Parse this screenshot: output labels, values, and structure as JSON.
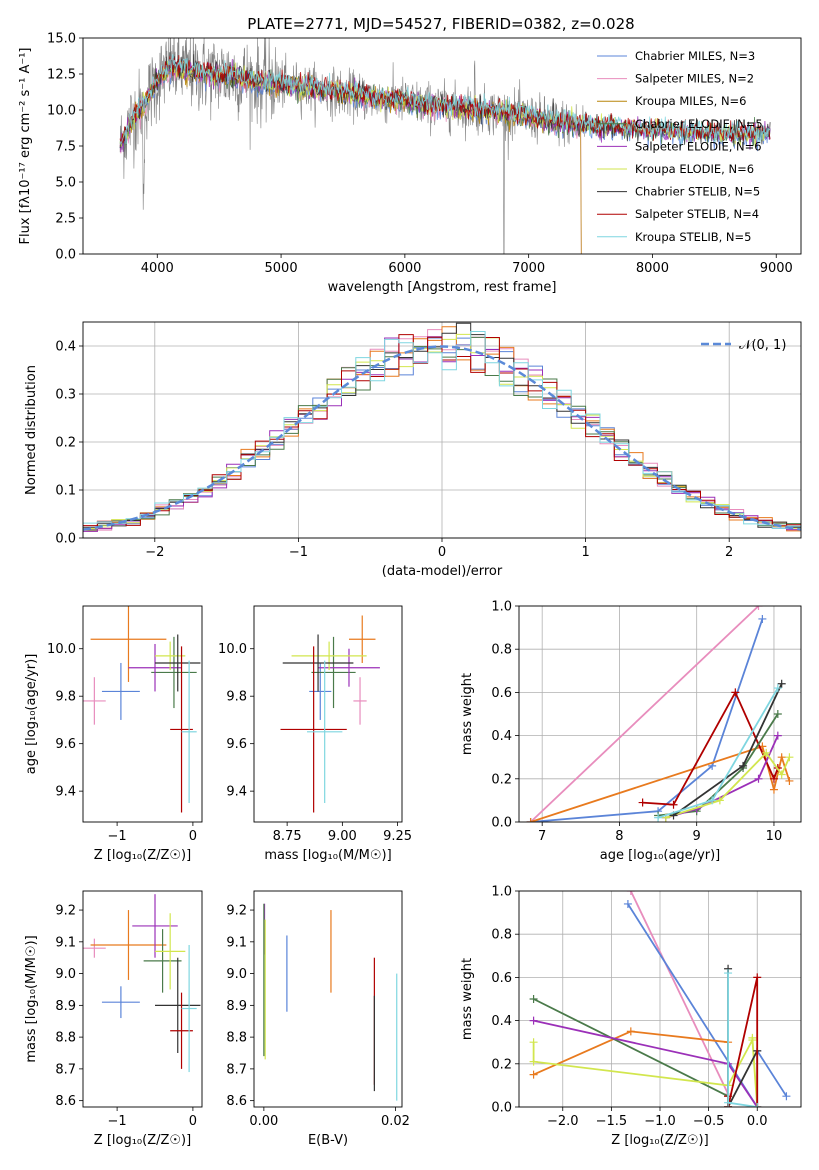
{
  "page_title": "PLATE=2771, MJD=54527, FIBERID=0382, z=0.028",
  "colors": {
    "chabrier_miles": "#5b84d8",
    "salpeter_miles": "#e88dbd",
    "kroupa_miles": "#b8860b",
    "chabrier_elodie": "#4a7a4a",
    "salpeter_elodie": "#9b30b8",
    "kroupa_elodie": "#d2e64e",
    "chabrier_stelib": "#333333",
    "salpeter_stelib": "#b00000",
    "kroupa_stelib": "#7fd6e0",
    "data": "#808080",
    "gaussian": "#5b8ad8",
    "orange_model": "#e87a1e"
  },
  "chart_data": [
    {
      "id": "spectrum",
      "type": "line",
      "title": "PLATE=2771, MJD=54527, FIBERID=0382, z=0.028",
      "xlabel": "wavelength [Angstrom, rest frame]",
      "ylabel": "Flux [fλ10⁻¹⁷ erg cm⁻² s⁻¹ A⁻¹]",
      "xlim": [
        3400,
        9200
      ],
      "ylim": [
        0,
        15
      ],
      "xticks": [
        4000,
        5000,
        6000,
        7000,
        8000,
        9000
      ],
      "yticks": [
        0.0,
        2.5,
        5.0,
        7.5,
        10.0,
        12.5,
        15.0
      ],
      "ytick_labels": [
        "0.0",
        "2.5",
        "5.0",
        "7.5",
        "10.0",
        "12.5",
        "15.0"
      ],
      "legend": [
        "Chabrier MILES, N_SSP=3",
        "Salpeter MILES, N_SSP=2",
        "Kroupa MILES, N_SSP=6",
        "Chabrier ELODIE, N_SSP=5",
        "Salpeter ELODIE, N_SSP=6",
        "Kroupa ELODIE, N_SSP=6",
        "Chabrier STELIB, N_SSP=5",
        "Salpeter STELIB, N_SSP=4",
        "Kroupa STELIB, N_SSP=5"
      ],
      "legend_placement": "upper-right",
      "continuum": [
        [
          3700,
          7.5
        ],
        [
          3800,
          9.5
        ],
        [
          3900,
          10.5
        ],
        [
          4000,
          12.0
        ],
        [
          4100,
          13.0
        ],
        [
          4200,
          12.8
        ],
        [
          4400,
          12.5
        ],
        [
          4600,
          12.4
        ],
        [
          4800,
          12.0
        ],
        [
          5000,
          11.8
        ],
        [
          5200,
          11.6
        ],
        [
          5400,
          11.3
        ],
        [
          5600,
          11.0
        ],
        [
          5800,
          10.8
        ],
        [
          6000,
          10.6
        ],
        [
          6200,
          10.3
        ],
        [
          6400,
          10.2
        ],
        [
          6600,
          10.0
        ],
        [
          6800,
          9.8
        ],
        [
          7000,
          9.5
        ],
        [
          7200,
          9.2
        ],
        [
          7400,
          9.0
        ],
        [
          7600,
          8.8
        ],
        [
          7800,
          8.7
        ],
        [
          8000,
          8.6
        ],
        [
          8200,
          8.5
        ],
        [
          8400,
          8.4
        ],
        [
          8600,
          8.3
        ],
        [
          8800,
          8.3
        ],
        [
          8950,
          8.4
        ]
      ],
      "data_range": [
        3700,
        7450
      ],
      "model_range": [
        3700,
        8950
      ]
    },
    {
      "id": "residuals",
      "type": "histogram",
      "xlabel": "(data-model)/error",
      "ylabel": "Normed distribution",
      "xlim": [
        -2.5,
        2.5
      ],
      "ylim": [
        0,
        0.45
      ],
      "xticks": [
        -2,
        -1,
        0,
        1,
        2
      ],
      "yticks": [
        0.0,
        0.1,
        0.2,
        0.3,
        0.4
      ],
      "ytick_labels": [
        "0.0",
        "0.1",
        "0.2",
        "0.3",
        "0.4"
      ],
      "legend": [
        "𝒩(0, 1)"
      ],
      "legend_placement": "upper-right",
      "bins": 50,
      "grid": true
    },
    {
      "id": "age_vs_Z",
      "type": "scatter",
      "xlabel": "Z [log₁₀(Z/Z☉)]",
      "ylabel": "age  [log₁₀(age/yr)]",
      "xlim": [
        -1.45,
        0.12
      ],
      "ylim": [
        9.27,
        10.18
      ],
      "xticks": [
        -1,
        0
      ],
      "yticks": [
        9.4,
        9.6,
        9.8,
        10.0
      ],
      "ytick_labels": [
        "9.4",
        "9.6",
        "9.8",
        "10.0"
      ],
      "points": [
        {
          "model": "chabrier_miles",
          "x": -0.95,
          "y": 9.82,
          "xerr": 0.25,
          "yerr": 0.12
        },
        {
          "model": "salpeter_miles",
          "x": -1.3,
          "y": 9.78,
          "xerr": 0.15,
          "yerr": 0.1
        },
        {
          "model": "orange_model",
          "x": -0.85,
          "y": 10.04,
          "xerr": 0.5,
          "yerr": 0.18
        },
        {
          "model": "chabrier_elodie",
          "x": -0.25,
          "y": 9.9,
          "xerr": 0.3,
          "yerr": 0.15
        },
        {
          "model": "salpeter_elodie",
          "x": -0.5,
          "y": 9.92,
          "xerr": 0.35,
          "yerr": 0.1
        },
        {
          "model": "kroupa_elodie",
          "x": -0.3,
          "y": 9.97,
          "xerr": 0.2,
          "yerr": 0.06
        },
        {
          "model": "chabrier_stelib",
          "x": -0.2,
          "y": 9.94,
          "xerr": 0.3,
          "yerr": 0.12
        },
        {
          "model": "salpeter_stelib",
          "x": -0.15,
          "y": 9.66,
          "xerr": 0.15,
          "yerr": 0.35
        },
        {
          "model": "kroupa_stelib",
          "x": -0.05,
          "y": 9.65,
          "xerr": 0.1,
          "yerr": 0.3
        }
      ]
    },
    {
      "id": "age_vs_mass",
      "type": "scatter",
      "xlabel": "mass [log₁₀(M/M☉)]",
      "ylabel": "",
      "xlim": [
        8.6,
        9.27
      ],
      "ylim": [
        9.27,
        10.18
      ],
      "xticks": [
        8.75,
        9.0,
        9.25
      ],
      "xtick_labels": [
        "8.75",
        "9.00",
        "9.25"
      ],
      "yticks": [
        9.4,
        9.6,
        9.8,
        10.0
      ],
      "ytick_labels": [
        "9.4",
        "9.6",
        "9.8",
        "10.0"
      ],
      "points": [
        {
          "model": "chabrier_miles",
          "x": 8.9,
          "y": 9.82,
          "xerr": 0.05,
          "yerr": 0.12
        },
        {
          "model": "salpeter_miles",
          "x": 9.08,
          "y": 9.78,
          "xerr": 0.03,
          "yerr": 0.1
        },
        {
          "model": "orange_model",
          "x": 9.09,
          "y": 10.04,
          "xerr": 0.06,
          "yerr": 0.1
        },
        {
          "model": "chabrier_elodie",
          "x": 8.96,
          "y": 9.9,
          "xerr": 0.1,
          "yerr": 0.15
        },
        {
          "model": "salpeter_elodie",
          "x": 9.03,
          "y": 9.92,
          "xerr": 0.14,
          "yerr": 0.08
        },
        {
          "model": "kroupa_elodie",
          "x": 8.94,
          "y": 9.97,
          "xerr": 0.17,
          "yerr": 0.06
        },
        {
          "model": "chabrier_stelib",
          "x": 8.89,
          "y": 9.94,
          "xerr": 0.16,
          "yerr": 0.12
        },
        {
          "model": "salpeter_stelib",
          "x": 8.87,
          "y": 9.66,
          "xerr": 0.15,
          "yerr": 0.35
        },
        {
          "model": "kroupa_stelib",
          "x": 8.92,
          "y": 9.65,
          "xerr": 0.08,
          "yerr": 0.3
        }
      ]
    },
    {
      "id": "weight_vs_age",
      "type": "line",
      "xlabel": "age  [log₁₀(age/yr)]",
      "ylabel": "mass weight",
      "xlim": [
        6.7,
        10.35
      ],
      "ylim": [
        0,
        1.0
      ],
      "xticks": [
        7,
        8,
        9,
        10
      ],
      "yticks": [
        0.0,
        0.2,
        0.4,
        0.6,
        0.8,
        1.0
      ],
      "ytick_labels": [
        "0.0",
        "0.2",
        "0.4",
        "0.6",
        "0.8",
        "1.0"
      ],
      "grid": true,
      "series": [
        {
          "model": "salpeter_miles",
          "x": [
            6.85,
            9.8
          ],
          "y": [
            0.0,
            1.0
          ]
        },
        {
          "model": "chabrier_miles",
          "x": [
            6.85,
            8.5,
            9.2,
            9.85
          ],
          "y": [
            0.0,
            0.05,
            0.26,
            0.94
          ]
        },
        {
          "model": "orange_model",
          "x": [
            6.85,
            9.85,
            10.0,
            10.1,
            10.2
          ],
          "y": [
            0.0,
            0.35,
            0.15,
            0.3,
            0.19
          ]
        },
        {
          "model": "salpeter_stelib",
          "x": [
            8.3,
            8.7,
            9.5,
            10.0,
            10.05
          ],
          "y": [
            0.09,
            0.08,
            0.6,
            0.2,
            0.25
          ]
        },
        {
          "model": "chabrier_elodie",
          "x": [
            8.5,
            9.0,
            9.6,
            10.05
          ],
          "y": [
            0.03,
            0.05,
            0.25,
            0.5
          ]
        },
        {
          "model": "salpeter_elodie",
          "x": [
            8.6,
            9.0,
            9.8,
            10.05
          ],
          "y": [
            0.02,
            0.06,
            0.2,
            0.4
          ]
        },
        {
          "model": "kroupa_elodie",
          "x": [
            8.6,
            9.3,
            9.9,
            10.1,
            10.2
          ],
          "y": [
            0.02,
            0.1,
            0.32,
            0.22,
            0.3
          ]
        },
        {
          "model": "chabrier_stelib",
          "x": [
            8.7,
            9.6,
            10.1
          ],
          "y": [
            0.03,
            0.26,
            0.64
          ]
        },
        {
          "model": "kroupa_stelib",
          "x": [
            8.5,
            9.2,
            10.05
          ],
          "y": [
            0.02,
            0.1,
            0.62
          ]
        }
      ]
    },
    {
      "id": "mass_vs_Z",
      "type": "scatter",
      "xlabel": "Z [log₁₀(Z/Z☉)]",
      "ylabel": "mass [log₁₀(M/M☉)]",
      "xlim": [
        -1.45,
        0.12
      ],
      "ylim": [
        8.58,
        9.26
      ],
      "xticks": [
        -1,
        0
      ],
      "yticks": [
        8.6,
        8.7,
        8.8,
        8.9,
        9.0,
        9.1,
        9.2
      ],
      "ytick_labels": [
        "8.6",
        "8.7",
        "8.8",
        "8.9",
        "9.0",
        "9.1",
        "9.2"
      ],
      "points": [
        {
          "model": "chabrier_miles",
          "x": -0.95,
          "y": 8.91,
          "xerr": 0.25,
          "yerr": 0.05
        },
        {
          "model": "salpeter_miles",
          "x": -1.3,
          "y": 9.08,
          "xerr": 0.15,
          "yerr": 0.03
        },
        {
          "model": "orange_model",
          "x": -0.85,
          "y": 9.09,
          "xerr": 0.5,
          "yerr": 0.11
        },
        {
          "model": "chabrier_elodie",
          "x": -0.4,
          "y": 9.04,
          "xerr": 0.25,
          "yerr": 0.1
        },
        {
          "model": "salpeter_elodie",
          "x": -0.5,
          "y": 9.15,
          "xerr": 0.3,
          "yerr": 0.1
        },
        {
          "model": "kroupa_elodie",
          "x": -0.3,
          "y": 9.07,
          "xerr": 0.2,
          "yerr": 0.12
        },
        {
          "model": "chabrier_stelib",
          "x": -0.2,
          "y": 8.9,
          "xerr": 0.3,
          "yerr": 0.15
        },
        {
          "model": "salpeter_stelib",
          "x": -0.15,
          "y": 8.82,
          "xerr": 0.15,
          "yerr": 0.12
        },
        {
          "model": "kroupa_stelib",
          "x": -0.05,
          "y": 8.89,
          "xerr": 0.1,
          "yerr": 0.2
        }
      ]
    },
    {
      "id": "mass_vs_EBV",
      "type": "scatter",
      "xlabel": "E(B-V)",
      "ylabel": "",
      "xlim": [
        -0.0015,
        0.021
      ],
      "ylim": [
        8.58,
        9.26
      ],
      "xticks": [
        0.0,
        0.02
      ],
      "xtick_labels": [
        "0.00",
        "0.02"
      ],
      "yticks": [
        8.6,
        8.7,
        8.8,
        8.9,
        9.0,
        9.1,
        9.2
      ],
      "ytick_labels": [
        "8.6",
        "8.7",
        "8.8",
        "8.9",
        "9.0",
        "9.1",
        "9.2"
      ],
      "points": [
        {
          "model": "salpeter_elodie",
          "x": 0.0001,
          "y": 9.14,
          "xerr": 0,
          "yerr": 0.08
        },
        {
          "model": "chabrier_elodie",
          "x": 0.0,
          "y": 8.98,
          "xerr": 0,
          "yerr": 0.24
        },
        {
          "model": "kroupa_elodie",
          "x": 0.0002,
          "y": 8.95,
          "xerr": 0,
          "yerr": 0.22
        },
        {
          "model": "chabrier_miles",
          "x": 0.0035,
          "y": 9.0,
          "xerr": 0,
          "yerr": 0.12
        },
        {
          "model": "orange_model",
          "x": 0.0102,
          "y": 9.07,
          "xerr": 0,
          "yerr": 0.13
        },
        {
          "model": "salpeter_stelib",
          "x": 0.0168,
          "y": 8.85,
          "xerr": 0,
          "yerr": 0.2
        },
        {
          "model": "chabrier_stelib",
          "x": 0.0168,
          "y": 8.78,
          "xerr": 0,
          "yerr": 0.15
        },
        {
          "model": "kroupa_stelib",
          "x": 0.0202,
          "y": 8.8,
          "xerr": 0,
          "yerr": 0.2
        }
      ]
    },
    {
      "id": "weight_vs_Z",
      "type": "line",
      "xlabel": "Z [log₁₀(Z/Z☉)]",
      "ylabel": "mass weight",
      "xlim": [
        -2.45,
        0.45
      ],
      "ylim": [
        0,
        1.0
      ],
      "xticks": [
        -2.0,
        -1.5,
        -1.0,
        -0.5,
        0.0
      ],
      "xtick_labels": [
        "−2.0",
        "−1.5",
        "−1.0",
        "−0.5",
        "0.0"
      ],
      "yticks": [
        0.0,
        0.2,
        0.4,
        0.6,
        0.8,
        1.0
      ],
      "ytick_labels": [
        "0.0",
        "0.2",
        "0.4",
        "0.6",
        "0.8",
        "1.0"
      ],
      "grid": true,
      "series": [
        {
          "model": "salpeter_miles",
          "x": [
            -1.3,
            -0.3,
            -0.3
          ],
          "y": [
            1.0,
            0.06,
            0.0
          ]
        },
        {
          "model": "chabrier_miles",
          "x": [
            -1.33,
            0.0,
            0.0,
            0.3
          ],
          "y": [
            0.94,
            0.0,
            0.26,
            0.05
          ]
        },
        {
          "model": "orange_model",
          "x": [
            -2.3,
            -1.3,
            -0.3,
            -0.3
          ],
          "y": [
            0.15,
            0.35,
            0.3,
            0.0
          ]
        },
        {
          "model": "chabrier_elodie",
          "x": [
            -2.3,
            -0.3,
            -0.3
          ],
          "y": [
            0.5,
            0.05,
            0.0
          ]
        },
        {
          "model": "salpeter_elodie",
          "x": [
            -2.3,
            -0.3,
            0.0
          ],
          "y": [
            0.4,
            0.2,
            0.0
          ]
        },
        {
          "model": "kroupa_elodie",
          "x": [
            -2.3,
            -2.3,
            -0.3,
            -0.05,
            0.0,
            -0.05
          ],
          "y": [
            0.3,
            0.21,
            0.1,
            0.31,
            0.0,
            0.32
          ]
        },
        {
          "model": "chabrier_stelib",
          "x": [
            -0.3,
            -0.3,
            0.0
          ],
          "y": [
            0.64,
            0.0,
            0.26
          ]
        },
        {
          "model": "salpeter_stelib",
          "x": [
            -0.3,
            -0.3,
            0.0,
            0.0
          ],
          "y": [
            0.05,
            0.0,
            0.6,
            0.0
          ]
        },
        {
          "model": "kroupa_stelib",
          "x": [
            -0.3,
            -0.3,
            0.0
          ],
          "y": [
            0.62,
            0.02,
            0.0
          ]
        }
      ]
    }
  ]
}
